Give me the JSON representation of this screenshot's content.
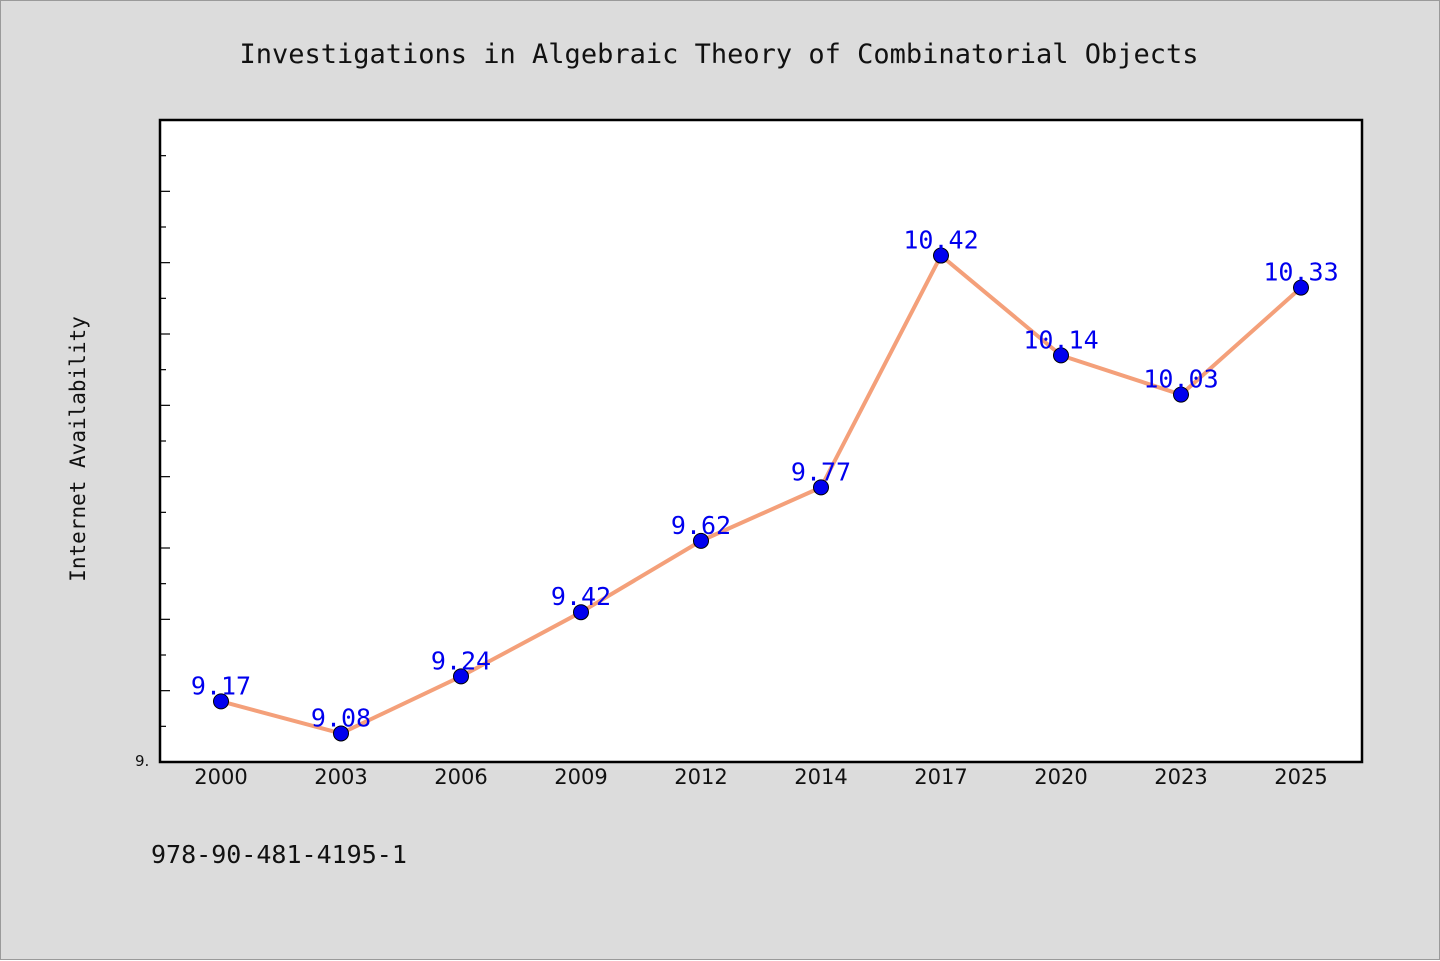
{
  "chart_data": {
    "type": "line",
    "title": "Investigations in Algebraic Theory of Combinatorial Objects",
    "xlabel": "",
    "ylabel": "Internet Availability",
    "categories": [
      "2000",
      "2003",
      "2006",
      "2009",
      "2012",
      "2014",
      "2017",
      "2020",
      "2023",
      "2025"
    ],
    "series": [
      {
        "values": [
          9.17,
          9.08,
          9.24,
          9.42,
          9.62,
          9.77,
          10.42,
          10.14,
          10.03,
          10.33
        ],
        "labels": [
          "9.17",
          "9.08",
          "9.24",
          "9.42",
          "9.62",
          "9.77",
          "10.42",
          "10.14",
          "10.03",
          "10.33"
        ],
        "line_color": "#f4a07a",
        "marker_color": "#0000ee"
      }
    ],
    "ylim": [
      9.0,
      10.8
    ],
    "y_tick_label": "9.",
    "grid": false,
    "legend": "none"
  },
  "footer": {
    "isbn": "978-90-481-4195-1"
  },
  "colors": {
    "background": "#dcdcdc",
    "plot_background": "#ffffff"
  }
}
